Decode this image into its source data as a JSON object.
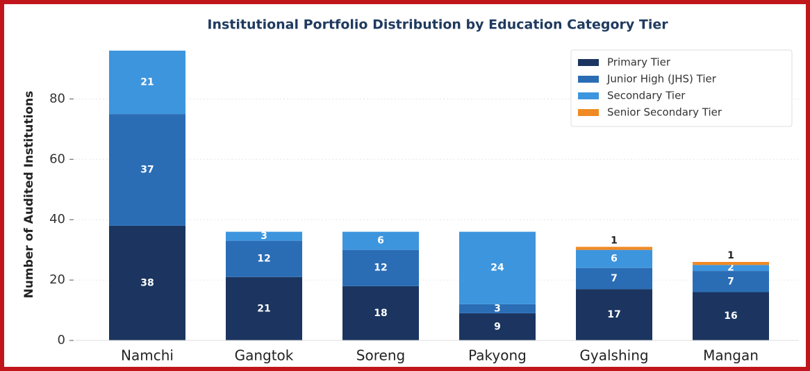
{
  "chart_data": {
    "type": "stacked_bar",
    "title": "Institutional Portfolio Distribution by Education Category Tier",
    "y_label": "Number of Audited Institutions",
    "categories": [
      "Namchi",
      "Gangtok",
      "Soreng",
      "Pakyong",
      "Gyalshing",
      "Mangan"
    ],
    "series": [
      {
        "name": "Primary Tier",
        "color": "#1b3560",
        "values": [
          38,
          21,
          18,
          9,
          17,
          16
        ]
      },
      {
        "name": "Junior High (JHS) Tier",
        "color": "#2a6db5",
        "values": [
          37,
          12,
          12,
          3,
          7,
          7
        ]
      },
      {
        "name": "Secondary Tier",
        "color": "#3d95dd",
        "values": [
          21,
          3,
          6,
          24,
          6,
          2
        ]
      },
      {
        "name": "Senior Secondary Tier",
        "color": "#f08a24",
        "values": [
          0,
          0,
          0,
          0,
          1,
          1
        ]
      }
    ],
    "ylim": [
      0,
      100.8
    ],
    "yticks": [
      0,
      20,
      40,
      60,
      80
    ],
    "grid": true,
    "legend": "upper right"
  }
}
